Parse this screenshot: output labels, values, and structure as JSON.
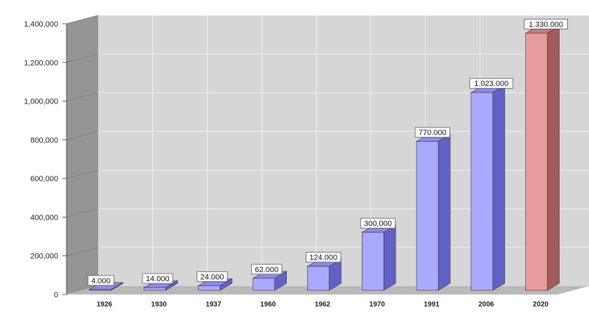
{
  "chart_data": {
    "type": "bar",
    "title": "",
    "xlabel": "",
    "ylabel": "",
    "categories": [
      "1926",
      "1930",
      "1937",
      "1960",
      "1962",
      "1970",
      "1991",
      "2006",
      "2020"
    ],
    "values": [
      4000,
      14000,
      24000,
      62000,
      124000,
      300000,
      770000,
      1023000,
      1330000
    ],
    "data_labels": [
      "4.000",
      "14.000",
      "24.000",
      "62.000",
      "124.000",
      "300.000",
      "770.000",
      "1.023.000",
      "1.330.000"
    ],
    "ylim": [
      0,
      1400000
    ],
    "y_ticks": [
      0,
      200000,
      400000,
      600000,
      800000,
      1000000,
      1200000,
      1400000
    ],
    "y_tick_labels": [
      "0",
      "200,000",
      "400,000",
      "600,000",
      "800,000",
      "1,000,000",
      "1,200,000",
      "1,400,000"
    ],
    "grid": true,
    "style": "3d-column",
    "colors": {
      "bar_front": "#a9a9ff",
      "bar_side": "#6262c6",
      "bar_top": "#8b8bea",
      "highlight_front": "#e79b9b",
      "highlight_side": "#a45a5a",
      "highlight_top": "#c77b7b",
      "wall": "#d6d6d6",
      "side_wall": "#959595",
      "floor": "#b9b9b9",
      "gridline": "#f2f2f2"
    },
    "highlight_index": 8
  }
}
